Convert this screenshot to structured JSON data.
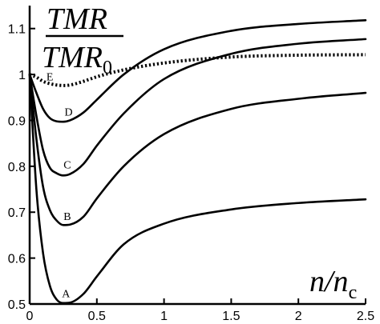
{
  "chart_data": {
    "type": "line",
    "xlabel": {
      "main": "n/n",
      "sub": "c"
    },
    "ylabel": {
      "numerator": "TMR",
      "denominator": "TMR",
      "denominator_sub": "0"
    },
    "xlim": [
      0,
      2.5
    ],
    "ylim": [
      0.5,
      1.15
    ],
    "x_ticks": [
      {
        "value": 0,
        "label": "0"
      },
      {
        "value": 0.5,
        "label": "0.5"
      },
      {
        "value": 1,
        "label": "1"
      },
      {
        "value": 1.5,
        "label": "1.5"
      },
      {
        "value": 2,
        "label": "2"
      },
      {
        "value": 2.5,
        "label": "2.5"
      }
    ],
    "y_ticks": [
      {
        "value": 0.5,
        "label": "0.5"
      },
      {
        "value": 0.6,
        "label": "0.6"
      },
      {
        "value": 0.7,
        "label": "0.7"
      },
      {
        "value": 0.8,
        "label": "0.8"
      },
      {
        "value": 0.9,
        "label": "0.9"
      },
      {
        "value": 1.0,
        "label": "1"
      },
      {
        "value": 1.1,
        "label": "1.1"
      }
    ],
    "grid": false,
    "legend": "none",
    "series": [
      {
        "label": "A",
        "style": "solid",
        "label_at": [
          0.27,
          0.515
        ],
        "x": [
          0,
          0.05,
          0.1,
          0.15,
          0.2,
          0.25,
          0.3,
          0.4,
          0.5,
          0.7,
          1.0,
          1.5,
          2.0,
          2.5
        ],
        "y": [
          1.0,
          0.75,
          0.61,
          0.54,
          0.51,
          0.502,
          0.503,
          0.522,
          0.56,
          0.63,
          0.675,
          0.706,
          0.72,
          0.728
        ]
      },
      {
        "label": "B",
        "style": "solid",
        "label_at": [
          0.28,
          0.683
        ],
        "x": [
          0,
          0.05,
          0.1,
          0.15,
          0.2,
          0.25,
          0.3,
          0.4,
          0.5,
          0.7,
          1.0,
          1.5,
          2.0,
          2.5
        ],
        "y": [
          1.0,
          0.86,
          0.755,
          0.705,
          0.682,
          0.672,
          0.673,
          0.69,
          0.73,
          0.8,
          0.87,
          0.925,
          0.947,
          0.96
        ]
      },
      {
        "label": "C",
        "style": "solid",
        "label_at": [
          0.28,
          0.795
        ],
        "x": [
          0,
          0.05,
          0.1,
          0.15,
          0.2,
          0.25,
          0.3,
          0.4,
          0.5,
          0.7,
          1.0,
          1.5,
          2.0,
          2.5
        ],
        "y": [
          1.0,
          0.91,
          0.835,
          0.797,
          0.785,
          0.78,
          0.783,
          0.805,
          0.845,
          0.915,
          0.99,
          1.045,
          1.067,
          1.077
        ]
      },
      {
        "label": "D",
        "style": "solid",
        "label_at": [
          0.29,
          0.91
        ],
        "x": [
          0,
          0.05,
          0.1,
          0.15,
          0.2,
          0.25,
          0.3,
          0.4,
          0.5,
          0.7,
          1.0,
          1.5,
          2.0,
          2.5
        ],
        "y": [
          1.0,
          0.96,
          0.925,
          0.905,
          0.898,
          0.897,
          0.9,
          0.917,
          0.945,
          1.0,
          1.055,
          1.095,
          1.11,
          1.118
        ]
      },
      {
        "label": "E",
        "style": "dotted",
        "label_at": [
          0.15,
          0.987
        ],
        "x": [
          0,
          0.05,
          0.1,
          0.15,
          0.2,
          0.25,
          0.3,
          0.4,
          0.5,
          0.7,
          1.0,
          1.5,
          2.0,
          2.5
        ],
        "y": [
          1.0,
          0.994,
          0.985,
          0.98,
          0.977,
          0.976,
          0.977,
          0.985,
          0.995,
          1.01,
          1.025,
          1.038,
          1.042,
          1.043
        ]
      }
    ]
  }
}
